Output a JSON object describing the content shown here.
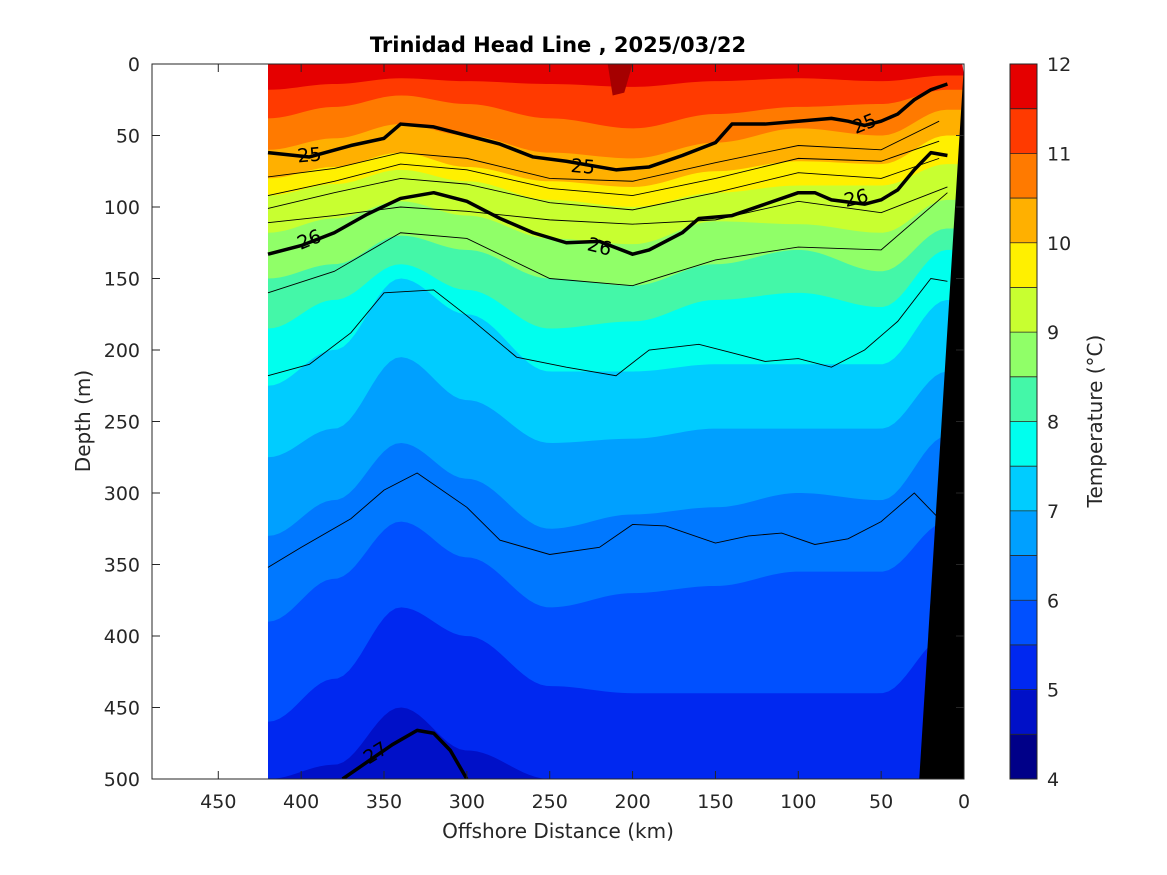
{
  "chart_data": {
    "type": "contour",
    "title": "Trinidad Head Line , 2025/03/22",
    "xlabel": "Offshore Distance (km)",
    "ylabel": "Depth (m)",
    "xlim": [
      490,
      0
    ],
    "ylim": [
      0,
      500
    ],
    "x_ticks": [
      450,
      400,
      350,
      300,
      250,
      200,
      150,
      100,
      50,
      0
    ],
    "y_ticks": [
      0,
      50,
      100,
      150,
      200,
      250,
      300,
      350,
      400,
      450,
      500
    ],
    "data_extent_km": [
      420,
      0
    ],
    "colorbar": {
      "label": "Temperature (°C)",
      "ticks": [
        12,
        11,
        10,
        9,
        8,
        7,
        6,
        5,
        4
      ],
      "levels": [
        4,
        4.5,
        5,
        5.5,
        6,
        6.5,
        7,
        7.5,
        8,
        8.5,
        9,
        9.5,
        10,
        10.5,
        11,
        11.5,
        12
      ],
      "colors": [
        "#000088",
        "#0010c8",
        "#0028f0",
        "#0050ff",
        "#0078ff",
        "#00a0ff",
        "#00ccff",
        "#00ffee",
        "#44f7a8",
        "#90ff68",
        "#c8ff30",
        "#fff000",
        "#ffb000",
        "#ff7a00",
        "#ff3a00",
        "#e50000",
        "#a50000"
      ]
    },
    "isotherms_depth_m": {
      "x_km": [
        420,
        380,
        340,
        300,
        250,
        200,
        150,
        100,
        50,
        10
      ],
      "t11": [
        18,
        14,
        10,
        12,
        14,
        16,
        12,
        10,
        12,
        8
      ],
      "t10_5": [
        38,
        30,
        22,
        28,
        38,
        45,
        35,
        30,
        28,
        18
      ],
      "t10": [
        60,
        52,
        42,
        50,
        62,
        66,
        55,
        45,
        50,
        32
      ],
      "t9_5": [
        80,
        72,
        62,
        72,
        82,
        86,
        75,
        68,
        70,
        50
      ],
      "t9": [
        92,
        84,
        74,
        82,
        95,
        100,
        90,
        85,
        85,
        70
      ],
      "t8_5": [
        118,
        108,
        96,
        106,
        122,
        126,
        110,
        112,
        118,
        95
      ],
      "t8": [
        150,
        140,
        120,
        130,
        150,
        155,
        140,
        130,
        145,
        115
      ],
      "t7_5": [
        185,
        165,
        140,
        158,
        185,
        180,
        165,
        160,
        170,
        130
      ],
      "t7": [
        225,
        200,
        150,
        175,
        215,
        215,
        210,
        210,
        210,
        165
      ],
      "t6_5": [
        275,
        255,
        205,
        235,
        265,
        262,
        255,
        255,
        255,
        215
      ],
      "t6": [
        330,
        305,
        265,
        290,
        325,
        315,
        310,
        300,
        305,
        260
      ],
      "t5_5": [
        390,
        360,
        320,
        345,
        380,
        370,
        365,
        355,
        355,
        320
      ],
      "t5": [
        460,
        430,
        380,
        400,
        435,
        440,
        440,
        440,
        440,
        400
      ],
      "t4_5": [
        500,
        490,
        450,
        480,
        500,
        500,
        500,
        500,
        500,
        500
      ]
    },
    "density_contours": [
      {
        "label": "25",
        "x_km": [
          420,
          395,
          370,
          350,
          340,
          320,
          300,
          280,
          260,
          240,
          210,
          190,
          170,
          150,
          140,
          120,
          100,
          80,
          70,
          60,
          50,
          40,
          30,
          20,
          10
        ],
        "depth_m": [
          62,
          65,
          57,
          52,
          42,
          44,
          50,
          56,
          65,
          68,
          74,
          72,
          64,
          55,
          42,
          42,
          40,
          38,
          40,
          43,
          40,
          35,
          25,
          18,
          14
        ]
      },
      {
        "label": "26",
        "x_km": [
          420,
          400,
          380,
          360,
          340,
          320,
          300,
          280,
          260,
          240,
          220,
          200,
          190,
          170,
          160,
          140,
          120,
          100,
          90,
          80,
          60,
          50,
          40,
          30,
          20,
          10
        ],
        "depth_m": [
          133,
          127,
          118,
          105,
          94,
          90,
          96,
          108,
          118,
          125,
          124,
          133,
          130,
          118,
          108,
          106,
          98,
          90,
          90,
          95,
          98,
          95,
          88,
          74,
          62,
          64
        ]
      },
      {
        "label": "27",
        "x_km": [
          375,
          360,
          345,
          330,
          320,
          310,
          300
        ],
        "depth_m": [
          500,
          488,
          476,
          466,
          468,
          480,
          500
        ]
      }
    ],
    "thin_contours": [
      {
        "x_km": [
          420,
          380,
          340,
          300,
          250,
          200,
          150,
          100,
          50,
          15
        ],
        "depth_m": [
          79,
          73,
          62,
          66,
          80,
          82,
          69,
          57,
          60,
          40
        ]
      },
      {
        "x_km": [
          420,
          380,
          340,
          300,
          250,
          200,
          150,
          100,
          50,
          15
        ],
        "depth_m": [
          92,
          82,
          70,
          74,
          87,
          92,
          80,
          66,
          68,
          54
        ]
      },
      {
        "x_km": [
          420,
          380,
          340,
          300,
          250,
          200,
          150,
          100,
          50,
          15
        ],
        "depth_m": [
          101,
          90,
          80,
          84,
          97,
          102,
          90,
          76,
          80,
          66
        ]
      },
      {
        "x_km": [
          420,
          380,
          340,
          300,
          250,
          200,
          150,
          100,
          50,
          10
        ],
        "depth_m": [
          111,
          106,
          100,
          103,
          109,
          112,
          109,
          96,
          104,
          86
        ]
      },
      {
        "x_km": [
          420,
          380,
          340,
          300,
          250,
          200,
          150,
          100,
          50,
          10
        ],
        "depth_m": [
          160,
          145,
          118,
          122,
          150,
          155,
          137,
          128,
          130,
          90
        ]
      },
      {
        "x_km": [
          420,
          395,
          370,
          350,
          320,
          300,
          270,
          240,
          210,
          190,
          160,
          140,
          120,
          100,
          80,
          60,
          40,
          20,
          10
        ],
        "depth_m": [
          218,
          210,
          188,
          160,
          158,
          176,
          205,
          212,
          218,
          200,
          196,
          202,
          208,
          206,
          212,
          200,
          180,
          150,
          152
        ]
      },
      {
        "x_km": [
          420,
          400,
          370,
          350,
          330,
          300,
          280,
          250,
          220,
          200,
          180,
          150,
          130,
          110,
          90,
          70,
          50,
          30,
          15
        ],
        "depth_m": [
          352,
          338,
          318,
          298,
          286,
          310,
          333,
          343,
          338,
          322,
          323,
          335,
          330,
          328,
          336,
          332,
          320,
          300,
          318
        ]
      }
    ],
    "bathymetry_km_at_depth": {
      "depth_m": [
        0,
        500
      ],
      "x_km": [
        0,
        27
      ]
    },
    "contour_label_positions": [
      {
        "label": "25",
        "x_km": 395,
        "depth_m": 64,
        "angle": -5
      },
      {
        "label": "25",
        "x_km": 230,
        "depth_m": 72,
        "angle": 5
      },
      {
        "label": "25",
        "x_km": 60,
        "depth_m": 42,
        "angle": -22
      },
      {
        "label": "26",
        "x_km": 395,
        "depth_m": 123,
        "angle": -22
      },
      {
        "label": "26",
        "x_km": 220,
        "depth_m": 128,
        "angle": 14
      },
      {
        "label": "26",
        "x_km": 65,
        "depth_m": 94,
        "angle": -14
      },
      {
        "label": "27",
        "x_km": 355,
        "depth_m": 482,
        "angle": -32
      }
    ]
  }
}
